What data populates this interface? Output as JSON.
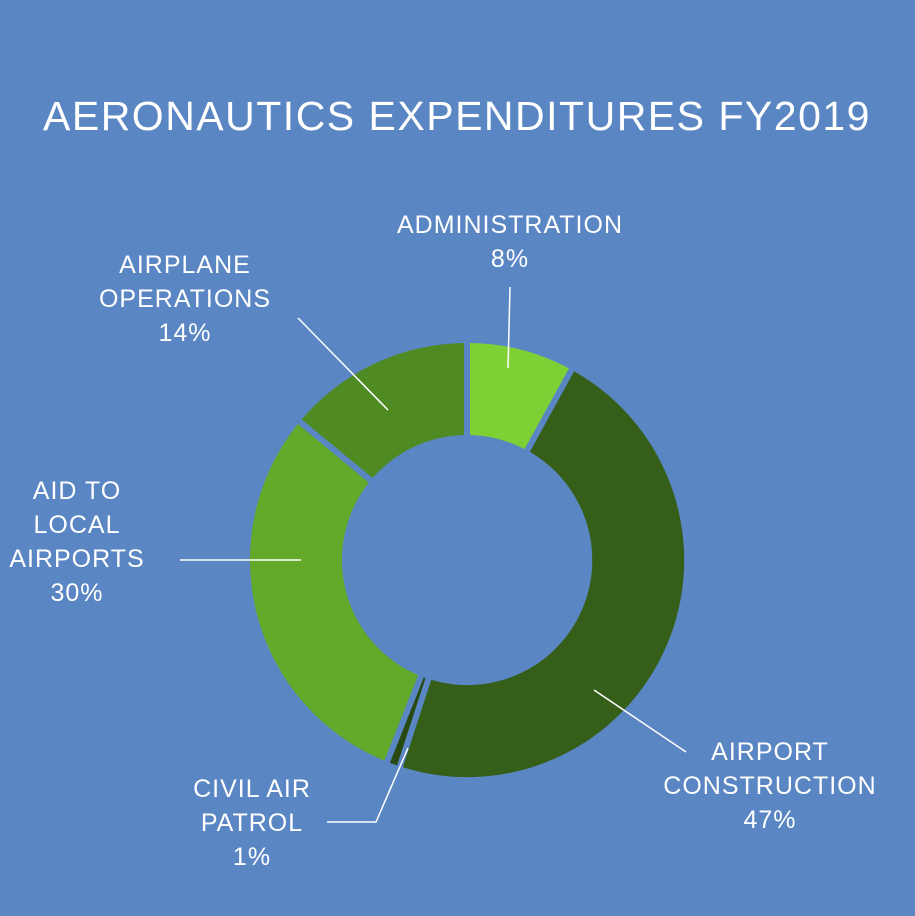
{
  "colors": {
    "background": "#5b86c4",
    "text": "#ffffff",
    "leader_line": "#ffffff"
  },
  "chart_data": {
    "type": "pie",
    "variant": "donut",
    "title": "AERONAUTICS EXPENDITURES FY2019",
    "start_angle_deg": 0,
    "direction": "clockwise",
    "slices": [
      {
        "label_lines": [
          "ADMINISTRATION"
        ],
        "value": 8,
        "value_label": "8%",
        "color": "#7ed134"
      },
      {
        "label_lines": [
          "AIRPORT",
          "CONSTRUCTION"
        ],
        "value": 47,
        "value_label": "47%",
        "color": "#355e19"
      },
      {
        "label_lines": [
          "CIVIL AIR",
          "PATROL"
        ],
        "value": 1,
        "value_label": "1%",
        "color": "#284a12"
      },
      {
        "label_lines": [
          "AID TO",
          "LOCAL",
          "AIRPORTS"
        ],
        "value": 30,
        "value_label": "30%",
        "color": "#63a92a"
      },
      {
        "label_lines": [
          "AIRPLANE",
          "OPERATIONS"
        ],
        "value": 14,
        "value_label": "14%",
        "color": "#4f8a22"
      }
    ]
  }
}
